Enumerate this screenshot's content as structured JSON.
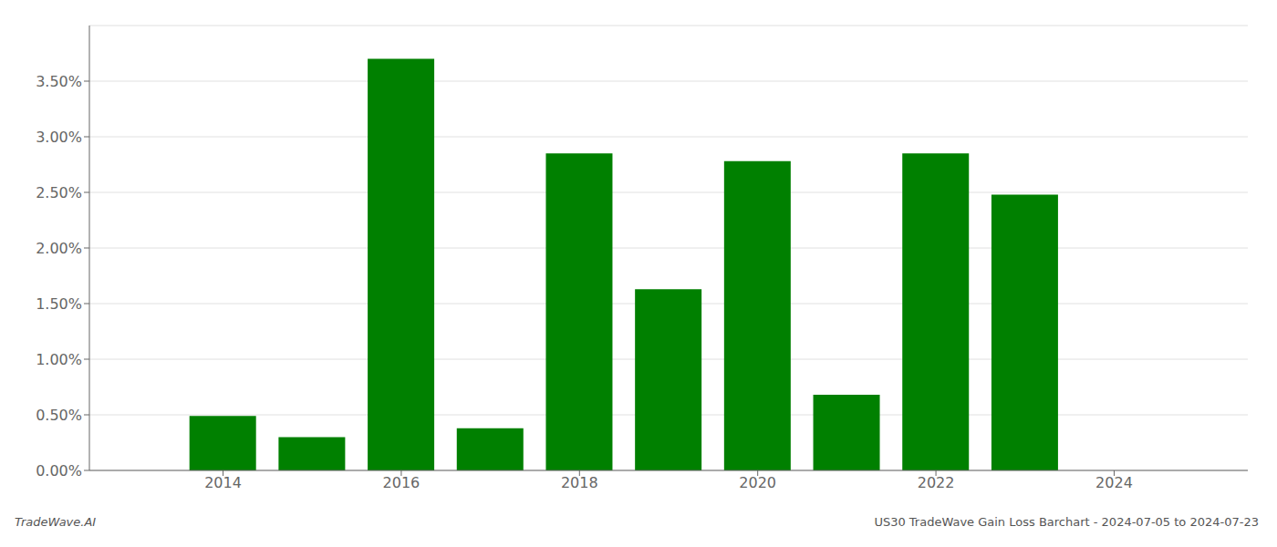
{
  "chart_data": {
    "type": "bar",
    "x": [
      2014,
      2015,
      2016,
      2017,
      2018,
      2019,
      2020,
      2021,
      2022,
      2023,
      2024
    ],
    "values": [
      0.0049,
      0.003,
      0.037,
      0.0038,
      0.0285,
      0.0163,
      0.0278,
      0.0068,
      0.0285,
      0.0248,
      0.0
    ],
    "color": "#008000",
    "xlim": [
      2012.5,
      2025.5
    ],
    "xticks": [
      2014,
      2016,
      2018,
      2020,
      2022,
      2024
    ],
    "ylim": [
      0,
      0.04
    ],
    "yticks": [
      {
        "value": 0.0,
        "label": "0.00%"
      },
      {
        "value": 0.005,
        "label": "0.50%"
      },
      {
        "value": 0.01,
        "label": "1.00%"
      },
      {
        "value": 0.015,
        "label": "1.50%"
      },
      {
        "value": 0.02,
        "label": "2.00%"
      },
      {
        "value": 0.025,
        "label": "2.50%"
      },
      {
        "value": 0.03,
        "label": "3.00%"
      },
      {
        "value": 0.035,
        "label": "3.50%"
      }
    ],
    "grid": true,
    "annotations": [
      "TradeWave.AI",
      "US30 TradeWave Gain Loss Barchart - 2024-07-05 to 2024-07-23"
    ]
  }
}
